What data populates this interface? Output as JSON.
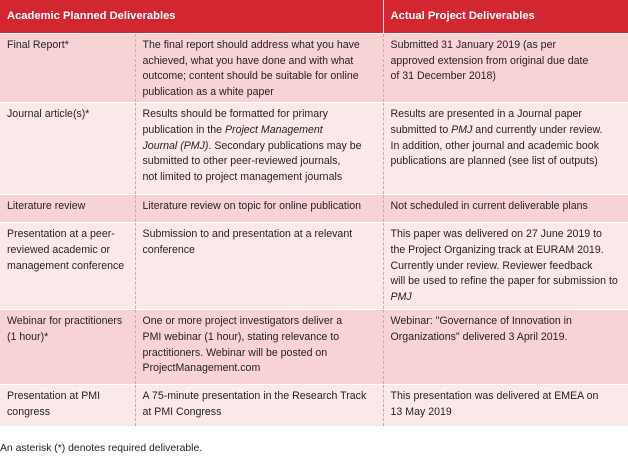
{
  "headers": [
    "Academic Planned Deliverables",
    "Actual Project Deliverables"
  ],
  "rows": [
    {
      "planned": "Final Report*",
      "desc": [
        "The final report should address what you have",
        "achieved, what you have done and with what",
        "outcome; content should be suitable for online",
        "publication as a white paper"
      ],
      "actual": [
        "Submitted 31 January 2019 (as per",
        "approved extension from original due date",
        "of 31 December 2018)"
      ]
    },
    {
      "planned": "Journal article(s)*",
      "desc_parts": [
        "Results should be formatted for primary",
        "publication in the ",
        "Project Management",
        "Journal (PMJ)",
        ". Secondary publications may be",
        "submitted to other peer-reviewed journals,",
        "not limited to project management journals"
      ],
      "actual_parts": [
        "Results are presented in a Journal paper",
        "submitted to ",
        "PMJ",
        " and currently under review.",
        "In addition, other journal and academic book",
        "publications are planned (see list of outputs)"
      ]
    },
    {
      "planned": "Literature review",
      "desc": [
        "Literature review on topic for online publication"
      ],
      "actual": [
        "Not scheduled in current deliverable plans"
      ]
    },
    {
      "planned": [
        "Presentation at a peer-",
        "reviewed academic or",
        "management conference"
      ],
      "desc": [
        "Submission to and presentation at a relevant",
        "conference"
      ],
      "actual_parts": [
        "This paper was delivered on 27 June 2019 to",
        "the Project Organizing track at EURAM 2019.",
        "Currently under review. Reviewer feedback",
        "will be used to refine the paper for submission to",
        "PMJ"
      ]
    },
    {
      "planned": [
        "Webinar for practitioners",
        "(1 hour)*"
      ],
      "desc": [
        "One or more project investigators deliver a",
        "PMI webinar (1 hour), stating relevance to",
        "practitioners. Webinar will be posted on",
        "ProjectManagement.com"
      ],
      "actual": [
        "Webinar: \"Governance of Innovation in",
        "Organizations\" delivered 3 April 2019."
      ]
    },
    {
      "planned": [
        "Presentation at PMI",
        "congress"
      ],
      "desc": [
        "A 75-minute presentation in the Research Track",
        "at PMI Congress"
      ],
      "actual": [
        "This presentation was delivered at EMEA on",
        "13 May 2019"
      ]
    }
  ],
  "footnote": "An asterisk (*) denotes required deliverable.",
  "colors": {
    "header_bg": "#d22630",
    "row_pink": "#f7d3d5",
    "row_light": "#fbe9ea",
    "text": "#231f20"
  }
}
